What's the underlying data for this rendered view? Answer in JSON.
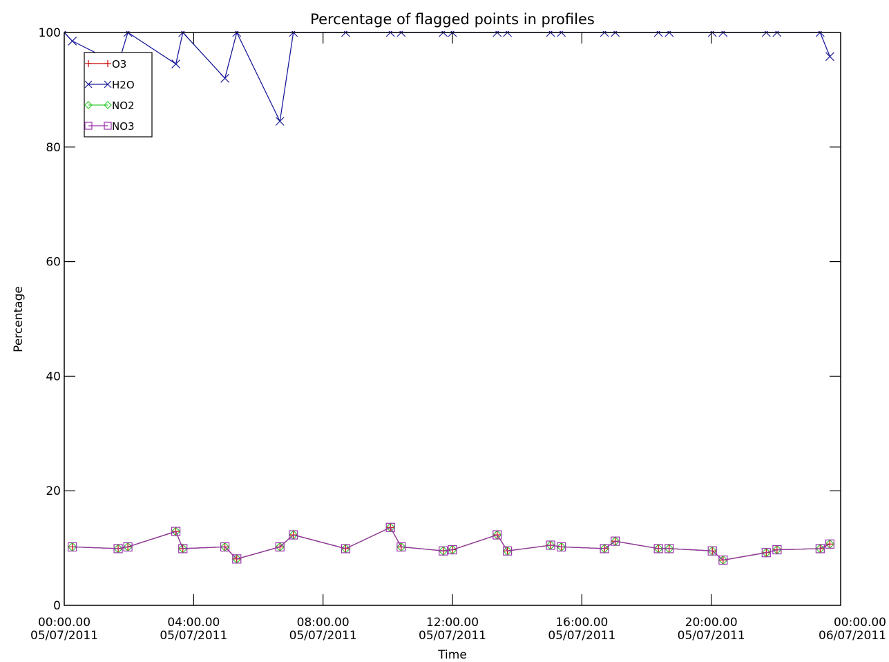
{
  "chart_data": {
    "type": "line",
    "title": "Percentage of flagged points in profiles",
    "xlabel": "Time",
    "ylabel": "Percentage",
    "xlim": [
      "05/07/2011 00:00",
      "06/07/2011 00:00"
    ],
    "ylim": [
      0,
      100
    ],
    "y_ticks": [
      "0",
      "20",
      "40",
      "60",
      "80",
      "100"
    ],
    "x_ticks": [
      {
        "time": "00:00.00",
        "date": "05/07/2011"
      },
      {
        "time": "04:00.00",
        "date": "05/07/2011"
      },
      {
        "time": "08:00.00",
        "date": "05/07/2011"
      },
      {
        "time": "12:00.00",
        "date": "05/07/2011"
      },
      {
        "time": "16:00.00",
        "date": "05/07/2011"
      },
      {
        "time": "20:00.00",
        "date": "05/07/2011"
      },
      {
        "time": "00:00.00",
        "date": "06/07/2011"
      }
    ],
    "grid": false,
    "legend_position": "top-left",
    "series": [
      {
        "name": "O3",
        "color": "#cc0000",
        "marker": "plus",
        "x": [
          "05/07/2011 00:15",
          "05/07/2011 01:40",
          "05/07/2011 01:58",
          "05/07/2011 03:27",
          "05/07/2011 03:40",
          "05/07/2011 04:58",
          "05/07/2011 05:20",
          "05/07/2011 06:40",
          "05/07/2011 07:05",
          "05/07/2011 08:42",
          "05/07/2011 10:05",
          "05/07/2011 10:25",
          "05/07/2011 11:43",
          "05/07/2011 12:00",
          "05/07/2011 13:23",
          "05/07/2011 13:42",
          "05/07/2011 15:02",
          "05/07/2011 15:22",
          "05/07/2011 16:42",
          "05/07/2011 17:02",
          "05/07/2011 18:22",
          "05/07/2011 18:42",
          "05/07/2011 20:02",
          "05/07/2011 20:22",
          "05/07/2011 21:42",
          "05/07/2011 22:02",
          "05/07/2011 23:22",
          "05/07/2011 23:40"
        ],
        "values": [
          10.2,
          9.9,
          10.2,
          12.9,
          9.9,
          10.2,
          8.1,
          10.2,
          12.3,
          9.9,
          13.6,
          10.2,
          9.5,
          9.7,
          12.3,
          9.5,
          10.5,
          10.2,
          9.9,
          11.2,
          9.9,
          9.9,
          9.5,
          7.9,
          9.2,
          9.7,
          9.9,
          10.7
        ]
      },
      {
        "name": "H2O",
        "color": "#1a1a99",
        "marker": "x",
        "x": [
          "05/07/2011 00:00",
          "05/07/2011 00:15",
          "05/07/2011 01:40",
          "05/07/2011 01:58",
          "05/07/2011 03:27",
          "05/07/2011 03:40",
          "05/07/2011 04:58",
          "05/07/2011 05:20",
          "05/07/2011 06:40",
          "05/07/2011 07:05",
          "05/07/2011 08:42",
          "05/07/2011 10:05",
          "05/07/2011 10:25",
          "05/07/2011 11:43",
          "05/07/2011 12:00",
          "05/07/2011 13:23",
          "05/07/2011 13:42",
          "05/07/2011 15:02",
          "05/07/2011 15:22",
          "05/07/2011 16:42",
          "05/07/2011 17:02",
          "05/07/2011 18:22",
          "05/07/2011 18:42",
          "05/07/2011 20:02",
          "05/07/2011 20:22",
          "05/07/2011 21:42",
          "05/07/2011 22:02",
          "05/07/2011 23:22",
          "05/07/2011 23:40"
        ],
        "values": [
          100,
          98.5,
          94.5,
          100,
          94.5,
          100,
          92,
          100,
          84.5,
          100,
          100,
          100,
          100,
          100,
          100,
          100,
          100,
          100,
          100,
          100,
          100,
          100,
          100,
          100,
          100,
          100,
          100,
          100,
          95.8
        ]
      },
      {
        "name": "NO2",
        "color": "#33cc33",
        "marker": "diamond",
        "x": [
          "05/07/2011 00:15",
          "05/07/2011 01:40",
          "05/07/2011 01:58",
          "05/07/2011 03:27",
          "05/07/2011 03:40",
          "05/07/2011 04:58",
          "05/07/2011 05:20",
          "05/07/2011 06:40",
          "05/07/2011 07:05",
          "05/07/2011 08:42",
          "05/07/2011 10:05",
          "05/07/2011 10:25",
          "05/07/2011 11:43",
          "05/07/2011 12:00",
          "05/07/2011 13:23",
          "05/07/2011 13:42",
          "05/07/2011 15:02",
          "05/07/2011 15:22",
          "05/07/2011 16:42",
          "05/07/2011 17:02",
          "05/07/2011 18:22",
          "05/07/2011 18:42",
          "05/07/2011 20:02",
          "05/07/2011 20:22",
          "05/07/2011 21:42",
          "05/07/2011 22:02",
          "05/07/2011 23:22",
          "05/07/2011 23:40"
        ],
        "values": [
          10.2,
          9.9,
          10.2,
          12.9,
          9.9,
          10.2,
          8.1,
          10.2,
          12.3,
          9.9,
          13.6,
          10.2,
          9.5,
          9.7,
          12.3,
          9.5,
          10.5,
          10.2,
          9.9,
          11.2,
          9.9,
          9.9,
          9.5,
          7.9,
          9.2,
          9.7,
          9.9,
          10.7
        ]
      },
      {
        "name": "NO3",
        "color": "#9933aa",
        "marker": "square",
        "x": [
          "05/07/2011 00:15",
          "05/07/2011 01:40",
          "05/07/2011 01:58",
          "05/07/2011 03:27",
          "05/07/2011 03:40",
          "05/07/2011 04:58",
          "05/07/2011 05:20",
          "05/07/2011 06:40",
          "05/07/2011 07:05",
          "05/07/2011 08:42",
          "05/07/2011 10:05",
          "05/07/2011 10:25",
          "05/07/2011 11:43",
          "05/07/2011 12:00",
          "05/07/2011 13:23",
          "05/07/2011 13:42",
          "05/07/2011 15:02",
          "05/07/2011 15:22",
          "05/07/2011 16:42",
          "05/07/2011 17:02",
          "05/07/2011 18:22",
          "05/07/2011 18:42",
          "05/07/2011 20:02",
          "05/07/2011 20:22",
          "05/07/2011 21:42",
          "05/07/2011 22:02",
          "05/07/2011 23:22",
          "05/07/2011 23:40"
        ],
        "values": [
          10.2,
          9.9,
          10.2,
          12.9,
          9.9,
          10.2,
          8.1,
          10.2,
          12.3,
          9.9,
          13.6,
          10.2,
          9.5,
          9.7,
          12.3,
          9.5,
          10.5,
          10.2,
          9.9,
          11.2,
          9.9,
          9.9,
          9.5,
          7.9,
          9.2,
          9.7,
          9.9,
          10.7
        ]
      }
    ]
  }
}
